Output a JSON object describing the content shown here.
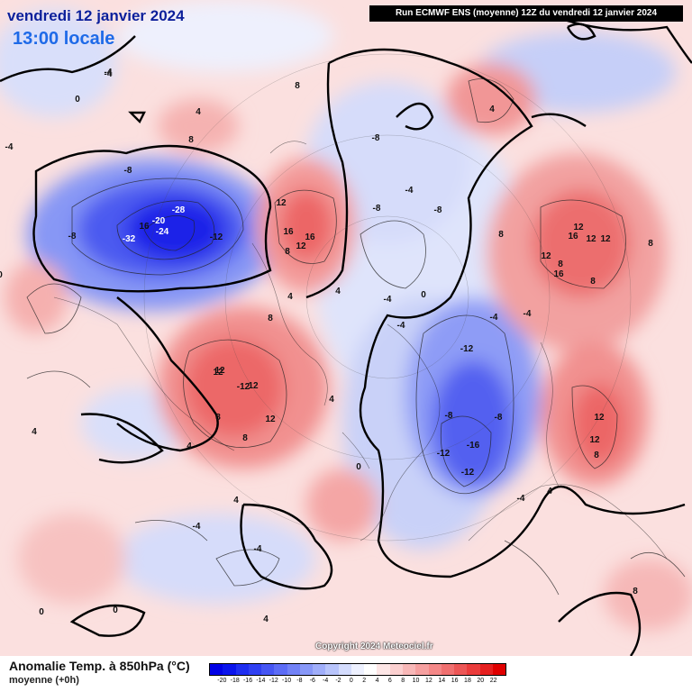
{
  "header": {
    "date_line": "vendredi 12 janvier 2024",
    "time_line": "13:00 locale",
    "run_banner": "Run ECMWF ENS (moyenne) 12Z du vendredi 12 janvier 2024"
  },
  "footer": {
    "variable_title": "Anomalie Temp. à 850hPa (°C)",
    "variable_subtitle": "moyenne   (+0h)",
    "copyright": "Copyright 2024 Meteociel.fr"
  },
  "legend": {
    "ticks": [
      "-20",
      "-18",
      "-16",
      "-14",
      "-12",
      "-10",
      "-8",
      "-6",
      "-4",
      "-2",
      "0",
      "2",
      "4",
      "6",
      "8",
      "10",
      "12",
      "14",
      "16",
      "18",
      "20",
      "22"
    ],
    "colors": [
      "#0000e6",
      "#0a14ec",
      "#1e2ef0",
      "#3040f2",
      "#4656f4",
      "#5c6cf6",
      "#7282f7",
      "#8898f8",
      "#a0aefa",
      "#b8c4fb",
      "#d4dcfd",
      "#eef1ff",
      "#ffffff",
      "#fde6e6",
      "#fbd0d0",
      "#f8b8b8",
      "#f6a0a0",
      "#f48888",
      "#f07070",
      "#ec5656",
      "#ea3c3c",
      "#e62020",
      "#e00000"
    ]
  },
  "map": {
    "contour_labels": [
      {
        "t": "-28"
      },
      {
        "t": "-24"
      },
      {
        "t": "-20"
      },
      {
        "t": "16"
      },
      {
        "t": "-32"
      },
      {
        "t": "-12"
      },
      {
        "t": "-8"
      },
      {
        "t": "-8"
      },
      {
        "t": "-4"
      },
      {
        "t": "-4"
      },
      {
        "t": "0"
      },
      {
        "t": "12"
      },
      {
        "t": "12"
      },
      {
        "t": "-12"
      },
      {
        "t": "16"
      },
      {
        "t": "16"
      },
      {
        "t": "12"
      },
      {
        "t": "8"
      },
      {
        "t": "4"
      },
      {
        "t": "8"
      },
      {
        "t": "-8"
      },
      {
        "t": "-4"
      },
      {
        "t": "-8"
      },
      {
        "t": "-8"
      },
      {
        "t": "-4"
      },
      {
        "t": "-4"
      },
      {
        "t": "0"
      },
      {
        "t": "-12"
      },
      {
        "t": "-16"
      },
      {
        "t": "-12"
      },
      {
        "t": "-12"
      },
      {
        "t": "-8"
      },
      {
        "t": "-8"
      },
      {
        "t": "-4"
      },
      {
        "t": "-4"
      },
      {
        "t": "-4"
      },
      {
        "t": "12"
      },
      {
        "t": "16"
      },
      {
        "t": "12"
      },
      {
        "t": "12"
      },
      {
        "t": "12"
      },
      {
        "t": "16"
      },
      {
        "t": "8"
      },
      {
        "t": "8"
      },
      {
        "t": "8"
      },
      {
        "t": "12"
      },
      {
        "t": "12"
      },
      {
        "t": "8"
      },
      {
        "t": "8"
      },
      {
        "t": "4"
      },
      {
        "t": "12"
      },
      {
        "t": "12"
      },
      {
        "t": "12"
      },
      {
        "t": "8"
      },
      {
        "t": "8"
      },
      {
        "t": "4"
      },
      {
        "t": "4"
      },
      {
        "t": "8"
      },
      {
        "t": "8"
      },
      {
        "t": "4"
      },
      {
        "t": "4"
      },
      {
        "t": "4"
      },
      {
        "t": "0"
      },
      {
        "t": "-4"
      },
      {
        "t": "-4"
      },
      {
        "t": "-4"
      },
      {
        "t": "0"
      },
      {
        "t": "0"
      },
      {
        "t": "4"
      },
      {
        "t": "8"
      },
      {
        "t": "4"
      },
      {
        "t": "0"
      },
      {
        "t": "4"
      }
    ]
  }
}
